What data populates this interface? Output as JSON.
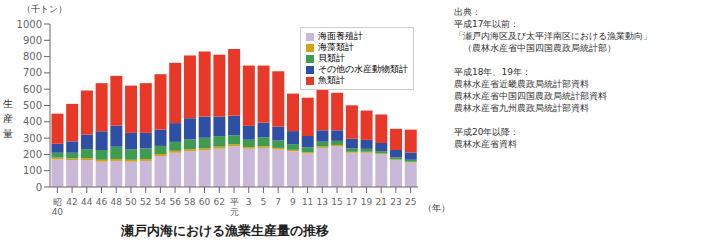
{
  "chart_data": {
    "type": "bar",
    "stacked": true,
    "title": "瀬戸内海における漁業生産量の推移",
    "ylabel": "生\n産\n量",
    "xlabel": "（年）",
    "annotations": [
      "（千トン）",
      "出典：\n平成17年以前：\n「瀬戸内海区及び太平洋南区における漁業動向」\n　（農林水産省中国四国農政局統計部）\n\n平成18年、19年：\n農林水産省近畿農政局統計部資料\n農林水産省中国四国農政局統計部資料\n農林水産省九州農政局統計部資料\n\n平成20年以降：\n農林水産省資料"
    ],
    "categories": [
      "昭\n40",
      "42",
      "44",
      "46",
      "48",
      "50",
      "52",
      "54",
      "56",
      "58",
      "60",
      "62",
      "平\n元",
      "3",
      "5",
      "7",
      "9",
      "11",
      "13",
      "15",
      "17",
      "19",
      "21",
      "23",
      "25"
    ],
    "series": [
      {
        "name": "海面養殖計",
        "color": "#c9b8d8",
        "values": [
          170,
          165,
          165,
          155,
          160,
          155,
          160,
          190,
          210,
          220,
          225,
          235,
          250,
          235,
          240,
          230,
          220,
          205,
          240,
          250,
          210,
          210,
          200,
          165,
          150
        ]
      },
      {
        "name": "海藻類計",
        "color": "#d4a017",
        "values": [
          10,
          10,
          12,
          12,
          12,
          12,
          12,
          12,
          12,
          12,
          12,
          12,
          12,
          10,
          10,
          10,
          8,
          8,
          8,
          8,
          6,
          6,
          5,
          5,
          5
        ]
      },
      {
        "name": "貝類計",
        "color": "#3e9b4f",
        "values": [
          30,
          35,
          55,
          60,
          75,
          65,
          65,
          50,
          55,
          60,
          65,
          65,
          55,
          45,
          55,
          45,
          35,
          30,
          30,
          25,
          20,
          18,
          15,
          12,
          12
        ]
      },
      {
        "name": "その他の水産動物類計",
        "color": "#2e4fa3",
        "values": [
          55,
          70,
          90,
          115,
          130,
          100,
          95,
          100,
          115,
          130,
          130,
          120,
          120,
          85,
          90,
          85,
          80,
          70,
          70,
          65,
          60,
          55,
          50,
          45,
          45
        ]
      },
      {
        "name": "魚類計",
        "color": "#e83828",
        "values": [
          185,
          230,
          270,
          295,
          305,
          290,
          305,
          340,
          370,
          385,
          400,
          380,
          410,
          370,
          350,
          340,
          230,
          235,
          250,
          230,
          205,
          180,
          175,
          130,
          140
        ]
      }
    ],
    "ylim": [
      0,
      1000
    ],
    "yticks": [
      0,
      100,
      200,
      300,
      400,
      500,
      600,
      700,
      800,
      900,
      1000
    ],
    "grid": false,
    "legend": "upper right"
  }
}
